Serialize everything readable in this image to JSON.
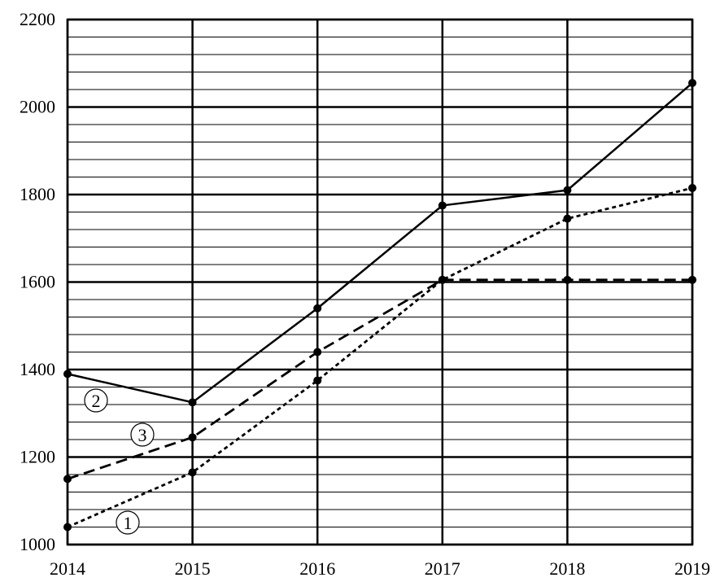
{
  "chart_data": {
    "type": "line",
    "x": [
      "2014",
      "2015",
      "2016",
      "2017",
      "2018",
      "2019"
    ],
    "ylim": [
      1000,
      2200
    ],
    "y_ticks": [
      "1000",
      "1200",
      "1400",
      "1600",
      "1800",
      "2000",
      "2200"
    ],
    "grid": true,
    "series": [
      {
        "name": "1",
        "style": "dotted",
        "values": [
          1040,
          1165,
          1375,
          1605,
          1745,
          1815
        ]
      },
      {
        "name": "2",
        "style": "solid",
        "values": [
          1390,
          1325,
          1540,
          1775,
          1810,
          2055
        ]
      },
      {
        "name": "3",
        "style": "dashed",
        "values": [
          1150,
          1245,
          1440,
          1605,
          1605,
          1605
        ]
      }
    ],
    "colors": {
      "line": "#000000",
      "grid": "#000000",
      "background": "#ffffff"
    }
  }
}
